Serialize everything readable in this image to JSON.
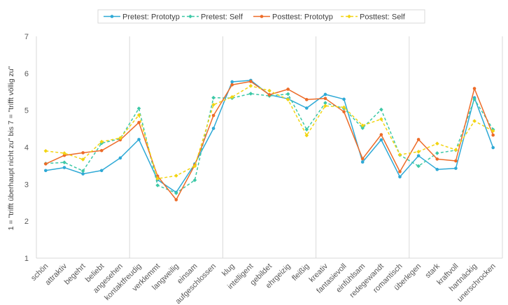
{
  "chart_data": {
    "type": "line",
    "title": "",
    "ylabel": "1 = \"trifft überhaupt nicht zu\" bis 7 = \"trifft völlig zu\"",
    "xlabel": "",
    "ylim": [
      1,
      7
    ],
    "yticks": [
      "1",
      "2",
      "3",
      "4",
      "5",
      "6",
      "7"
    ],
    "grid": "vertical-groups",
    "legend_position": "top",
    "categories": [
      "schön",
      "attraktiv",
      "begehrt",
      "beliebt",
      "angesehen",
      "kontaktfreudig",
      "verklemmt",
      "langweilig",
      "einsam",
      "aufgeschlossen",
      "klug",
      "intelligent",
      "gebildet",
      "ehrgeizig",
      "fleißig",
      "kreativ",
      "fantasievoll",
      "einfühlsam",
      "redegewandt",
      "romantisch",
      "überlegen",
      "stark",
      "kraftvoll",
      "hartnäckig",
      "unerschrocken"
    ],
    "series": [
      {
        "name": "Pretest: Prototyp",
        "color": "#2EA9D6",
        "dash": "solid",
        "marker": "circle",
        "values": [
          3.37,
          3.45,
          3.28,
          3.37,
          3.71,
          4.21,
          3.12,
          2.78,
          3.55,
          4.51,
          5.77,
          5.81,
          5.42,
          5.31,
          5.06,
          5.43,
          5.3,
          3.6,
          4.2,
          3.2,
          3.77,
          3.4,
          3.43,
          5.34,
          3.99
        ]
      },
      {
        "name": "Pretest: Self",
        "color": "#3CC8A6",
        "dash": "dashed",
        "marker": "diamond",
        "values": [
          3.56,
          3.59,
          3.36,
          4.11,
          4.23,
          5.05,
          2.97,
          2.76,
          3.11,
          5.34,
          5.33,
          5.45,
          5.39,
          5.44,
          4.48,
          5.2,
          5.05,
          4.52,
          5.02,
          3.79,
          3.49,
          3.84,
          3.92,
          5.3,
          4.48
        ]
      },
      {
        "name": "Posttest: Prototyp",
        "color": "#ED6B28",
        "dash": "solid",
        "marker": "circle",
        "values": [
          3.55,
          3.78,
          3.85,
          3.91,
          4.2,
          4.67,
          3.22,
          2.58,
          3.52,
          4.86,
          5.69,
          5.78,
          5.42,
          5.57,
          5.29,
          5.32,
          4.96,
          3.69,
          4.34,
          3.34,
          4.21,
          3.68,
          3.63,
          5.59,
          4.33
        ]
      },
      {
        "name": "Posttest: Self",
        "color": "#F2D411",
        "dash": "dashed",
        "marker": "diamond",
        "values": [
          3.9,
          3.84,
          3.67,
          4.15,
          4.25,
          4.87,
          3.15,
          3.23,
          3.49,
          5.15,
          5.36,
          5.66,
          5.53,
          5.29,
          4.32,
          5.12,
          5.08,
          4.59,
          4.76,
          3.8,
          3.88,
          4.1,
          3.93,
          4.71,
          4.44
        ]
      }
    ]
  }
}
